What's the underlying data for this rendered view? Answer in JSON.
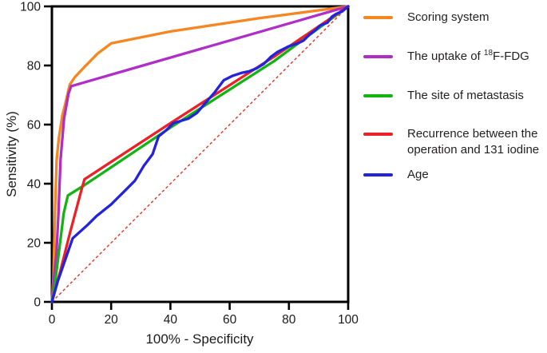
{
  "figure": {
    "background": "#ffffff",
    "text_color": "#231F20",
    "axis_color": "#000000"
  },
  "chart_data": {
    "type": "line",
    "title": "",
    "xlabel": "100% - Specificity",
    "ylabel": "Sensitivity (%)",
    "xlim": [
      0,
      100
    ],
    "ylim": [
      0,
      100
    ],
    "xticks": [
      0,
      20,
      40,
      60,
      80,
      100
    ],
    "yticks": [
      0,
      20,
      40,
      60,
      80,
      100
    ],
    "grid": false,
    "legend_position": "right",
    "reference_line": {
      "name": "Identity line",
      "from": [
        0,
        0
      ],
      "to": [
        100,
        100
      ],
      "color": "#EE2C2C",
      "style": "dashed"
    },
    "series": [
      {
        "name": "Scoring system",
        "color": "#F6861F",
        "points": [
          [
            0,
            0
          ],
          [
            0.5,
            8
          ],
          [
            1,
            29
          ],
          [
            1.6,
            48
          ],
          [
            2.3,
            55
          ],
          [
            3.5,
            63
          ],
          [
            4.5,
            67
          ],
          [
            6,
            73.5
          ],
          [
            7.7,
            76
          ],
          [
            11,
            79.5
          ],
          [
            15.4,
            84
          ],
          [
            20,
            87.5
          ],
          [
            40,
            91.5
          ],
          [
            70,
            96
          ],
          [
            100,
            100
          ]
        ]
      },
      {
        "name": "The uptake of ¹⁸F-FDG",
        "color": "#B02EC8",
        "points": [
          [
            0,
            0
          ],
          [
            0.7,
            8
          ],
          [
            1.5,
            16
          ],
          [
            2.2,
            30
          ],
          [
            2.9,
            48
          ],
          [
            4.1,
            62
          ],
          [
            5.6,
            70.5
          ],
          [
            6.5,
            73
          ],
          [
            100,
            100
          ]
        ]
      },
      {
        "name": "The site of metastasis",
        "color": "#14B314",
        "points": [
          [
            0,
            0
          ],
          [
            1,
            6
          ],
          [
            2.5,
            18
          ],
          [
            4,
            30
          ],
          [
            5.4,
            36
          ],
          [
            11,
            39.5
          ],
          [
            40,
            59
          ],
          [
            75,
            81.5
          ],
          [
            100,
            100
          ]
        ]
      },
      {
        "name": "Recurrence between the operation and 131 iodine",
        "color": "#EC2127",
        "points": [
          [
            0,
            0
          ],
          [
            3,
            11
          ],
          [
            6,
            23
          ],
          [
            10,
            38
          ],
          [
            11,
            41.5
          ],
          [
            40,
            60.5
          ],
          [
            75,
            83
          ],
          [
            100,
            100
          ]
        ]
      },
      {
        "name": "Age",
        "color": "#2323DE",
        "points": [
          [
            0,
            0
          ],
          [
            2,
            7
          ],
          [
            7,
            21.5
          ],
          [
            12,
            26
          ],
          [
            15,
            29
          ],
          [
            20,
            33
          ],
          [
            25,
            38
          ],
          [
            28,
            41
          ],
          [
            31,
            46
          ],
          [
            34,
            50
          ],
          [
            36,
            56
          ],
          [
            38.5,
            58
          ],
          [
            41,
            60.5
          ],
          [
            46,
            62
          ],
          [
            49,
            64
          ],
          [
            52,
            67.5
          ],
          [
            55,
            71
          ],
          [
            58,
            75
          ],
          [
            61,
            76.5
          ],
          [
            64,
            77.5
          ],
          [
            66.5,
            78
          ],
          [
            69,
            79
          ],
          [
            71.5,
            80.5
          ],
          [
            74,
            83
          ],
          [
            76,
            84.5
          ],
          [
            80,
            86.5
          ],
          [
            83,
            87.5
          ],
          [
            85,
            88.5
          ],
          [
            87,
            90.5
          ],
          [
            89,
            92
          ],
          [
            90.5,
            93.5
          ],
          [
            93,
            94.5
          ],
          [
            94.5,
            96.5
          ],
          [
            96,
            97.5
          ],
          [
            98,
            98.3
          ],
          [
            100,
            100
          ]
        ]
      }
    ]
  },
  "legend": {
    "fdg_pre": "The uptake of ",
    "fdg_sup": "18",
    "fdg_post": "F-FDG"
  }
}
